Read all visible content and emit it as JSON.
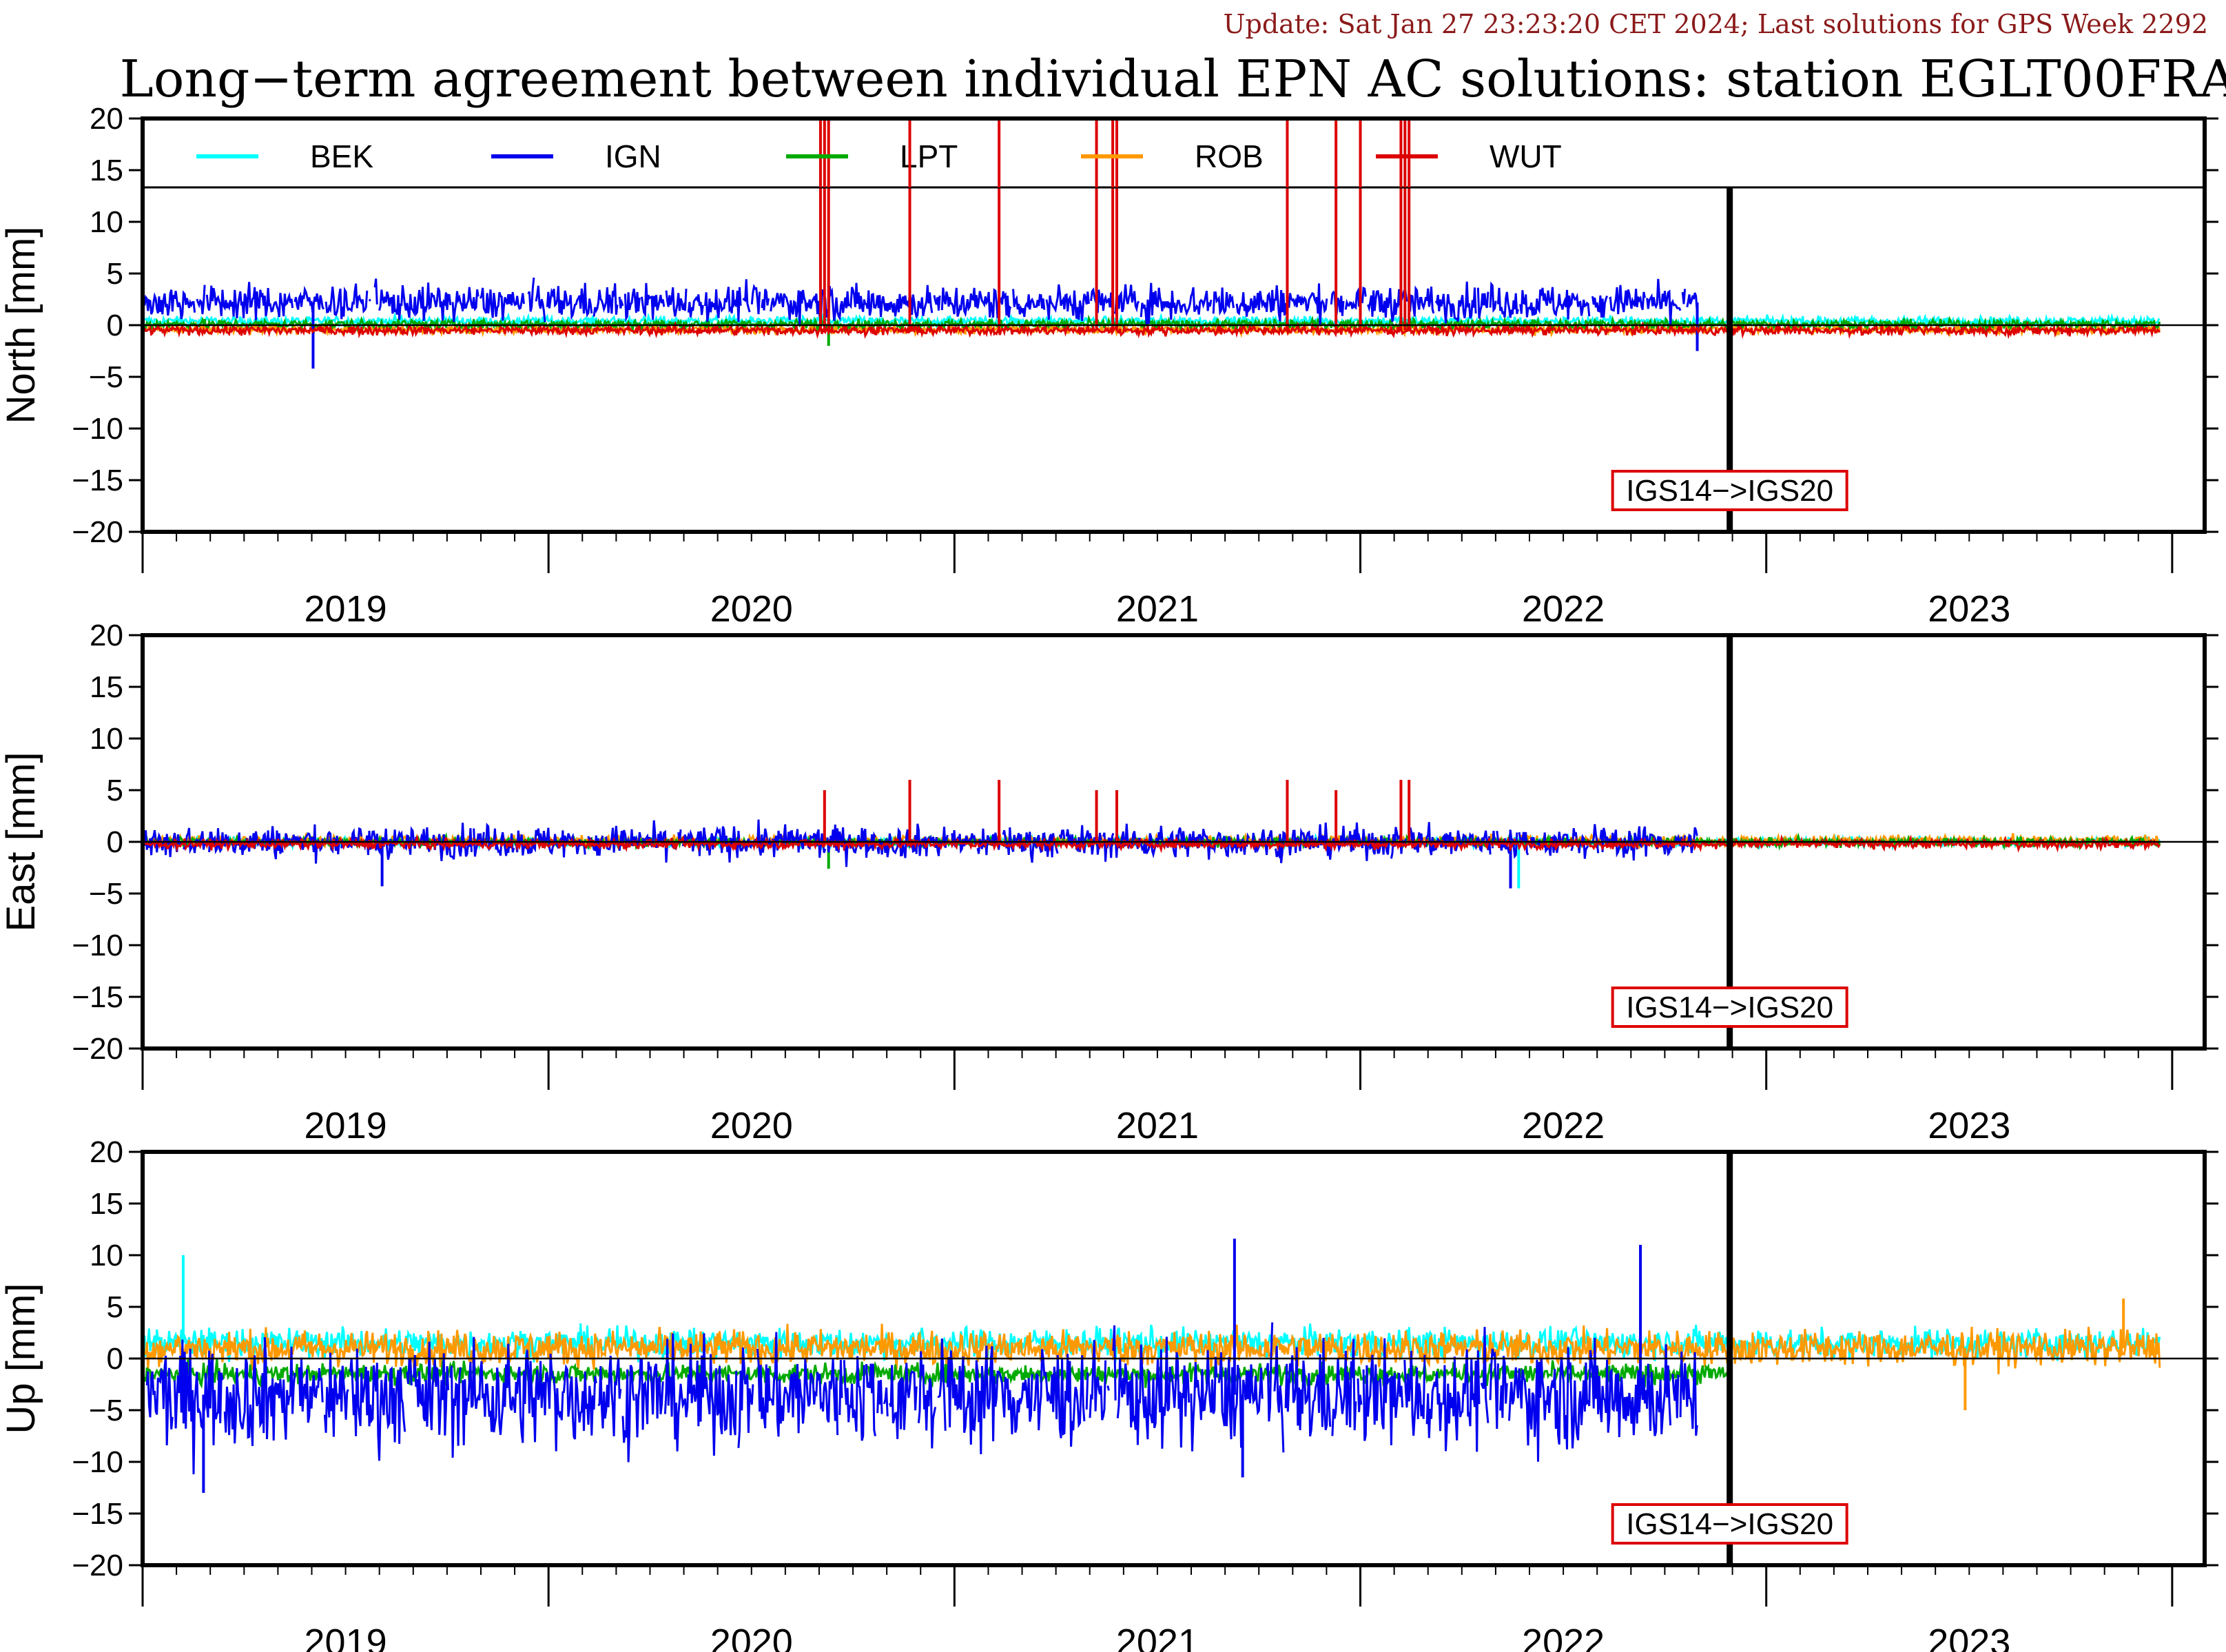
{
  "header": {
    "update_text": "Update: Sat Jan 27 23:23:20 CET 2024; Last solutions for GPS Week 2292",
    "title": "Long−term agreement between individual EPN AC solutions: station EGLT00FRA"
  },
  "colors": {
    "BEK": "#00ffff",
    "IGN": "#0000ee",
    "LPT": "#00aa00",
    "ROB": "#ff9900",
    "WUT": "#dd0000",
    "frame": "#000000",
    "note_border": "#dd0000"
  },
  "chart_data": {
    "type": "line",
    "x_axis": {
      "unit": "year",
      "range": [
        2018.5,
        2023.58
      ],
      "year_labels": [
        "2019",
        "2020",
        "2021",
        "2022",
        "2023"
      ],
      "year_centers": [
        2019.0,
        2020.0,
        2021.0,
        2022.0,
        2023.0
      ]
    },
    "y_axis": {
      "range": [
        -20,
        20
      ],
      "ticks": [
        "20",
        "15",
        "10",
        "5",
        "0",
        "−5",
        "−10",
        "−15",
        "−20"
      ]
    },
    "frame_change": {
      "x": 2022.41,
      "label": "IGS14−>IGS20"
    },
    "legend": {
      "placement": "top",
      "entries": [
        "BEK",
        "IGN",
        "LPT",
        "ROB",
        "WUT"
      ]
    },
    "panels": [
      {
        "ylabel": "North [mm]",
        "series": [
          {
            "name": "BEK",
            "mean": 0.4,
            "noise": 0.3
          },
          {
            "name": "IGN",
            "mean": 2.2,
            "noise": 1.2,
            "end": 2022.33,
            "spikes": [
              [
                2018.92,
                -4.2
              ],
              [
                2022.33,
                -2.5
              ]
            ]
          },
          {
            "name": "LPT",
            "mean": 0.1,
            "noise": 0.3,
            "spikes": [
              [
                2020.19,
                -2.0
              ]
            ]
          },
          {
            "name": "ROB",
            "mean": -0.4,
            "noise": 0.3
          },
          {
            "name": "WUT",
            "mean": -0.5,
            "noise": 0.3,
            "spikes": [
              [
                2020.17,
                20
              ],
              [
                2020.18,
                20
              ],
              [
                2020.19,
                20
              ],
              [
                2020.39,
                20
              ],
              [
                2020.61,
                20
              ],
              [
                2020.85,
                20
              ],
              [
                2020.89,
                20
              ],
              [
                2020.9,
                20
              ],
              [
                2021.32,
                20
              ],
              [
                2021.44,
                20
              ],
              [
                2021.5,
                20
              ],
              [
                2021.6,
                20
              ],
              [
                2021.61,
                20
              ],
              [
                2021.62,
                20
              ]
            ]
          }
        ]
      },
      {
        "ylabel": "East [mm]",
        "series": [
          {
            "name": "BEK",
            "mean": 0.0,
            "noise": 0.3,
            "spikes": [
              [
                2021.89,
                -4.5
              ]
            ]
          },
          {
            "name": "IGN",
            "mean": 0.0,
            "noise": 1.1,
            "end": 2022.33,
            "spikes": [
              [
                2019.09,
                -4.3
              ],
              [
                2021.87,
                -4.5
              ]
            ]
          },
          {
            "name": "LPT",
            "mean": 0.0,
            "noise": 0.3,
            "spikes": [
              [
                2020.19,
                -2.6
              ]
            ]
          },
          {
            "name": "ROB",
            "mean": 0.1,
            "noise": 0.35
          },
          {
            "name": "WUT",
            "mean": -0.2,
            "noise": 0.3,
            "spikes": [
              [
                2020.18,
                5.0
              ],
              [
                2020.39,
                6.0
              ],
              [
                2020.61,
                6.0
              ],
              [
                2020.85,
                5.0
              ],
              [
                2020.9,
                5.0
              ],
              [
                2021.32,
                6.0
              ],
              [
                2021.44,
                5.0
              ],
              [
                2021.6,
                6.0
              ],
              [
                2021.62,
                6.0
              ]
            ]
          }
        ]
      },
      {
        "ylabel": "Up [mm]",
        "series": [
          {
            "name": "BEK",
            "mean": 1.5,
            "noise": 1.0,
            "spikes": [
              [
                2018.6,
                10.0
              ]
            ]
          },
          {
            "name": "IGN",
            "mean": -3.5,
            "noise": 3.5,
            "end": 2022.33,
            "spikes": [
              [
                2018.65,
                -13.0
              ],
              [
                2021.19,
                11.6
              ],
              [
                2021.21,
                -11.5
              ],
              [
                2022.19,
                11.0
              ]
            ]
          },
          {
            "name": "LPT",
            "mean": -1.5,
            "noise": 0.7,
            "end": 2022.41
          },
          {
            "name": "ROB",
            "mean": 1.0,
            "noise": 1.2,
            "spikes": [
              [
                2023.38,
                5.8
              ],
              [
                2022.99,
                -5.0
              ]
            ]
          }
        ]
      }
    ]
  }
}
